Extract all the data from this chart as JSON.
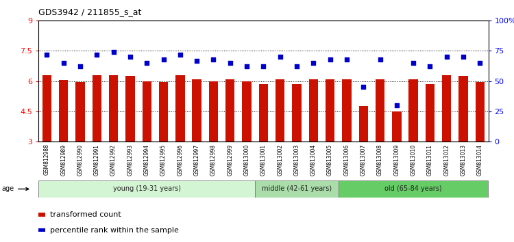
{
  "title": "GDS3942 / 211855_s_at",
  "samples": [
    "GSM812988",
    "GSM812989",
    "GSM812990",
    "GSM812991",
    "GSM812992",
    "GSM812993",
    "GSM812994",
    "GSM812995",
    "GSM812996",
    "GSM812997",
    "GSM812998",
    "GSM812999",
    "GSM813000",
    "GSM813001",
    "GSM813002",
    "GSM813003",
    "GSM813004",
    "GSM813005",
    "GSM813006",
    "GSM813007",
    "GSM813008",
    "GSM813009",
    "GSM813010",
    "GSM813011",
    "GSM813012",
    "GSM813013",
    "GSM813014"
  ],
  "bar_values": [
    6.3,
    6.05,
    5.95,
    6.3,
    6.3,
    6.25,
    6.0,
    5.95,
    6.3,
    6.1,
    6.0,
    6.1,
    6.0,
    5.85,
    6.1,
    5.85,
    6.1,
    6.1,
    6.1,
    4.75,
    6.1,
    4.5,
    6.1,
    5.85,
    6.3,
    6.25,
    5.95
  ],
  "percentile_values": [
    72,
    65,
    62,
    72,
    74,
    70,
    65,
    68,
    72,
    67,
    68,
    65,
    62,
    62,
    70,
    62,
    65,
    68,
    68,
    45,
    68,
    30,
    65,
    62,
    70,
    70,
    65
  ],
  "bar_color": "#cc1100",
  "dot_color": "#0000cc",
  "ylim_left": [
    3,
    9
  ],
  "ylim_right": [
    0,
    100
  ],
  "yticks_left": [
    3,
    4.5,
    6,
    7.5,
    9
  ],
  "yticks_right": [
    0,
    25,
    50,
    75,
    100
  ],
  "ytick_labels_right": [
    "0",
    "25",
    "50",
    "75",
    "100%"
  ],
  "groups": [
    {
      "label": "young (19-31 years)",
      "start": 0,
      "end": 13,
      "color": "#d4f5d4"
    },
    {
      "label": "middle (42-61 years)",
      "start": 13,
      "end": 18,
      "color": "#aaddaa"
    },
    {
      "label": "old (65-84 years)",
      "start": 18,
      "end": 27,
      "color": "#66cc66"
    }
  ],
  "legend_bar_label": "transformed count",
  "legend_dot_label": "percentile rank within the sample",
  "age_label": "age",
  "bar_width": 0.55,
  "tick_label_bg": "#d0d0d0"
}
